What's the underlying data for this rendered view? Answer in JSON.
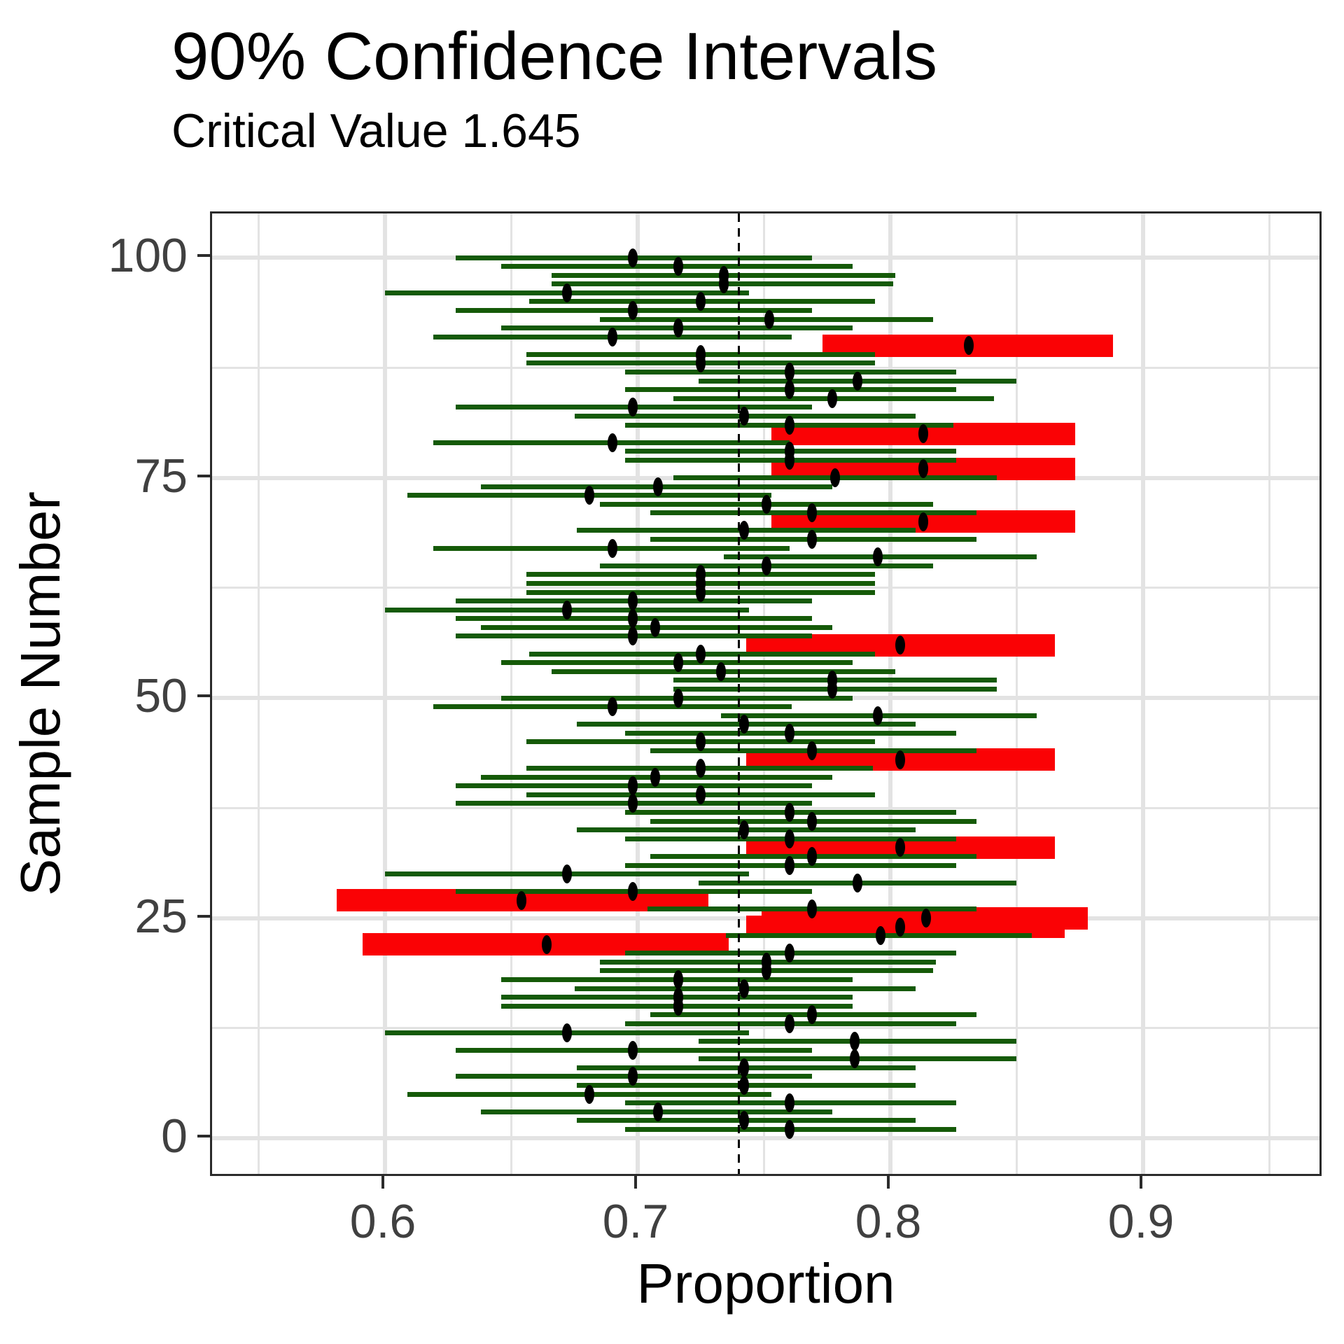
{
  "chart_data": {
    "type": "scatter",
    "subtype": "horizontal_confidence_intervals",
    "title": "90% Confidence Intervals",
    "subtitle": "Critical Value 1.645",
    "xlabel": "Proportion",
    "ylabel": "Sample Number",
    "legend": "none",
    "grid": "on",
    "true_proportion": 0.74,
    "reference_line": {
      "x": 0.74,
      "style": "dashed",
      "color": "#000000"
    },
    "x_axis": {
      "label": "Proportion",
      "ticks": [
        0.6,
        0.7,
        0.8,
        0.9
      ],
      "tick_labels": [
        "0.6",
        "0.7",
        "0.8",
        "0.9"
      ],
      "minor_ticks": [
        0.55,
        0.65,
        0.75,
        0.85,
        0.95
      ],
      "range": [
        0.532,
        0.971
      ]
    },
    "y_axis": {
      "label": "Sample Number",
      "ticks": [
        0,
        25,
        50,
        75,
        100
      ],
      "tick_labels": [
        "0",
        "25",
        "50",
        "75",
        "100"
      ],
      "minor_ticks": [
        12.5,
        37.5,
        62.5,
        87.5
      ],
      "range": [
        -4.6,
        105.2
      ]
    },
    "colors": {
      "interval_covers": "#155A08",
      "interval_misses": "#FA0205",
      "point": "#000000",
      "gridline": "#E3E3E3",
      "axis_text": "#404040",
      "title_text": "#000000"
    },
    "n_samples": 100,
    "miss_samples": [
      22,
      24,
      25,
      27,
      33,
      43,
      56,
      70,
      76,
      80,
      90
    ],
    "samples": {
      "n_first": 1,
      "lower": [
        0.695,
        0.676,
        0.638,
        0.695,
        0.609,
        0.676,
        0.628,
        0.676,
        0.724,
        0.628,
        0.724,
        0.6,
        0.695,
        0.705,
        0.646,
        0.646,
        0.675,
        0.646,
        0.685,
        0.685,
        0.695,
        0.591,
        0.735,
        0.743,
        0.749,
        0.704,
        0.581,
        0.628,
        0.724,
        0.6,
        0.695,
        0.705,
        0.743,
        0.695,
        0.676,
        0.705,
        0.695,
        0.628,
        0.656,
        0.628,
        0.638,
        0.656,
        0.743,
        0.705,
        0.656,
        0.695,
        0.676,
        0.733,
        0.619,
        0.646,
        0.714,
        0.714,
        0.666,
        0.646,
        0.657,
        0.743,
        0.628,
        0.638,
        0.628,
        0.6,
        0.628,
        0.656,
        0.656,
        0.656,
        0.685,
        0.734,
        0.619,
        0.705,
        0.676,
        0.753,
        0.705,
        0.685,
        0.609,
        0.638,
        0.714,
        0.753,
        0.695,
        0.695,
        0.619,
        0.753,
        0.695,
        0.675,
        0.628,
        0.714,
        0.695,
        0.724,
        0.695,
        0.656,
        0.656,
        0.773,
        0.619,
        0.646,
        0.685,
        0.628,
        0.657,
        0.6,
        0.666,
        0.666,
        0.646,
        0.628
      ],
      "estimate": [
        0.76,
        0.742,
        0.708,
        0.76,
        0.681,
        0.742,
        0.698,
        0.742,
        0.786,
        0.698,
        0.786,
        0.672,
        0.76,
        0.769,
        0.716,
        0.716,
        0.742,
        0.716,
        0.751,
        0.751,
        0.76,
        0.664,
        0.796,
        0.804,
        0.814,
        0.769,
        0.654,
        0.698,
        0.787,
        0.672,
        0.76,
        0.769,
        0.804,
        0.76,
        0.742,
        0.769,
        0.76,
        0.698,
        0.725,
        0.698,
        0.707,
        0.725,
        0.804,
        0.769,
        0.725,
        0.76,
        0.742,
        0.795,
        0.69,
        0.716,
        0.777,
        0.777,
        0.733,
        0.716,
        0.725,
        0.804,
        0.698,
        0.707,
        0.698,
        0.672,
        0.698,
        0.725,
        0.725,
        0.725,
        0.751,
        0.795,
        0.69,
        0.769,
        0.742,
        0.813,
        0.769,
        0.751,
        0.681,
        0.708,
        0.778,
        0.813,
        0.76,
        0.76,
        0.69,
        0.813,
        0.76,
        0.742,
        0.698,
        0.777,
        0.76,
        0.787,
        0.76,
        0.725,
        0.725,
        0.831,
        0.69,
        0.716,
        0.752,
        0.698,
        0.725,
        0.672,
        0.734,
        0.734,
        0.716,
        0.698
      ],
      "upper": [
        0.826,
        0.81,
        0.777,
        0.826,
        0.753,
        0.81,
        0.769,
        0.81,
        0.85,
        0.769,
        0.85,
        0.744,
        0.826,
        0.834,
        0.785,
        0.785,
        0.81,
        0.785,
        0.817,
        0.818,
        0.826,
        0.736,
        0.856,
        0.869,
        0.878,
        0.834,
        0.728,
        0.769,
        0.85,
        0.744,
        0.826,
        0.834,
        0.865,
        0.826,
        0.81,
        0.834,
        0.826,
        0.769,
        0.794,
        0.769,
        0.777,
        0.793,
        0.865,
        0.834,
        0.794,
        0.826,
        0.81,
        0.858,
        0.761,
        0.785,
        0.842,
        0.842,
        0.802,
        0.785,
        0.794,
        0.865,
        0.769,
        0.777,
        0.769,
        0.744,
        0.769,
        0.794,
        0.794,
        0.794,
        0.817,
        0.858,
        0.76,
        0.834,
        0.81,
        0.873,
        0.834,
        0.817,
        0.753,
        0.777,
        0.842,
        0.873,
        0.826,
        0.826,
        0.76,
        0.873,
        0.825,
        0.81,
        0.769,
        0.841,
        0.826,
        0.85,
        0.826,
        0.794,
        0.794,
        0.888,
        0.761,
        0.785,
        0.817,
        0.769,
        0.794,
        0.744,
        0.801,
        0.802,
        0.785,
        0.769
      ]
    }
  }
}
